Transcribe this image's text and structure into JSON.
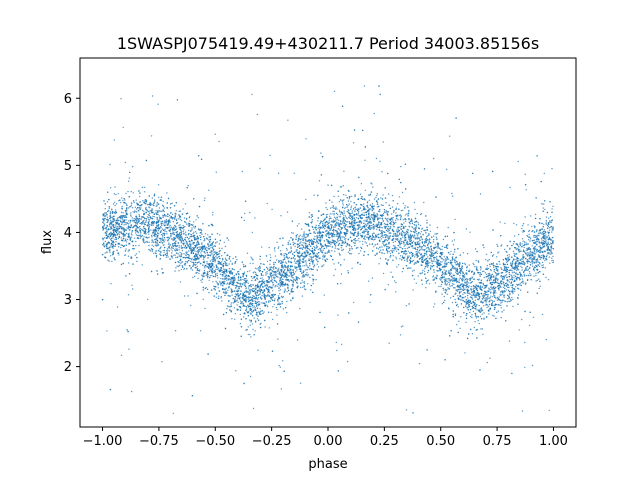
{
  "chart_data": {
    "type": "scatter",
    "title": "1SWASPJ075419.49+430211.7 Period 34003.85156s",
    "xlabel": "phase",
    "ylabel": "flux",
    "xlim": [
      -1.1,
      1.1
    ],
    "ylim": [
      1.1,
      6.6
    ],
    "xticks": [
      -1.0,
      -0.75,
      -0.5,
      -0.25,
      0.0,
      0.25,
      0.5,
      0.75,
      1.0
    ],
    "xtick_labels": [
      "−1.00",
      "−0.75",
      "−0.50",
      "−0.25",
      "0.00",
      "0.25",
      "0.50",
      "0.75",
      "1.00"
    ],
    "yticks": [
      2,
      3,
      4,
      5,
      6
    ],
    "ytick_labels": [
      "2",
      "3",
      "4",
      "5",
      "6"
    ],
    "grid": false,
    "marker_color": "#1f77b4",
    "series": [
      {
        "x": [
          -1.0,
          -0.9,
          -0.8,
          -0.7,
          -0.6,
          -0.5,
          -0.4,
          -0.35,
          -0.3,
          -0.2,
          -0.1,
          0.0,
          0.1,
          0.2,
          0.3,
          0.4,
          0.5,
          0.6,
          0.65,
          0.7,
          0.8,
          0.9,
          1.0
        ],
        "y": [
          4.0,
          4.1,
          4.15,
          4.0,
          3.8,
          3.5,
          3.15,
          3.05,
          3.1,
          3.35,
          3.7,
          3.95,
          4.1,
          4.15,
          4.0,
          3.8,
          3.5,
          3.15,
          3.05,
          3.1,
          3.35,
          3.7,
          3.95
        ]
      }
    ]
  }
}
